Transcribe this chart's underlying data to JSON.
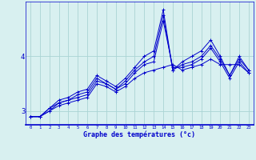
{
  "xlabel": "Graphe des températures (°c)",
  "background_color": "#d8f0f0",
  "line_color": "#0000cc",
  "grid_color": "#aad4d4",
  "xlim": [
    -0.5,
    23.5
  ],
  "ylim": [
    2.75,
    5.0
  ],
  "yticks": [
    3,
    4
  ],
  "xticks": [
    0,
    1,
    2,
    3,
    4,
    5,
    6,
    7,
    8,
    9,
    10,
    11,
    12,
    13,
    14,
    15,
    16,
    17,
    18,
    19,
    20,
    21,
    22,
    23
  ],
  "series": [
    [
      2.9,
      2.9,
      3.0,
      3.1,
      3.15,
      3.2,
      3.25,
      3.5,
      3.45,
      3.35,
      3.45,
      3.6,
      3.7,
      3.75,
      3.8,
      3.85,
      3.75,
      3.8,
      3.85,
      3.95,
      3.85,
      3.85,
      3.85,
      3.7
    ],
    [
      2.9,
      2.9,
      3.0,
      3.15,
      3.2,
      3.25,
      3.3,
      3.55,
      3.5,
      3.4,
      3.5,
      3.7,
      3.85,
      3.9,
      4.65,
      3.8,
      3.8,
      3.85,
      3.95,
      4.15,
      3.9,
      3.6,
      3.9,
      3.7
    ],
    [
      2.9,
      2.9,
      3.05,
      3.15,
      3.2,
      3.3,
      3.35,
      3.6,
      3.5,
      3.4,
      3.55,
      3.75,
      3.9,
      4.0,
      4.75,
      3.75,
      3.85,
      3.9,
      4.0,
      4.2,
      3.95,
      3.65,
      3.95,
      3.75
    ],
    [
      2.9,
      2.9,
      3.05,
      3.2,
      3.25,
      3.35,
      3.4,
      3.65,
      3.55,
      3.45,
      3.6,
      3.8,
      4.0,
      4.1,
      4.85,
      3.75,
      3.9,
      4.0,
      4.1,
      4.3,
      4.0,
      3.65,
      4.0,
      3.75
    ]
  ]
}
